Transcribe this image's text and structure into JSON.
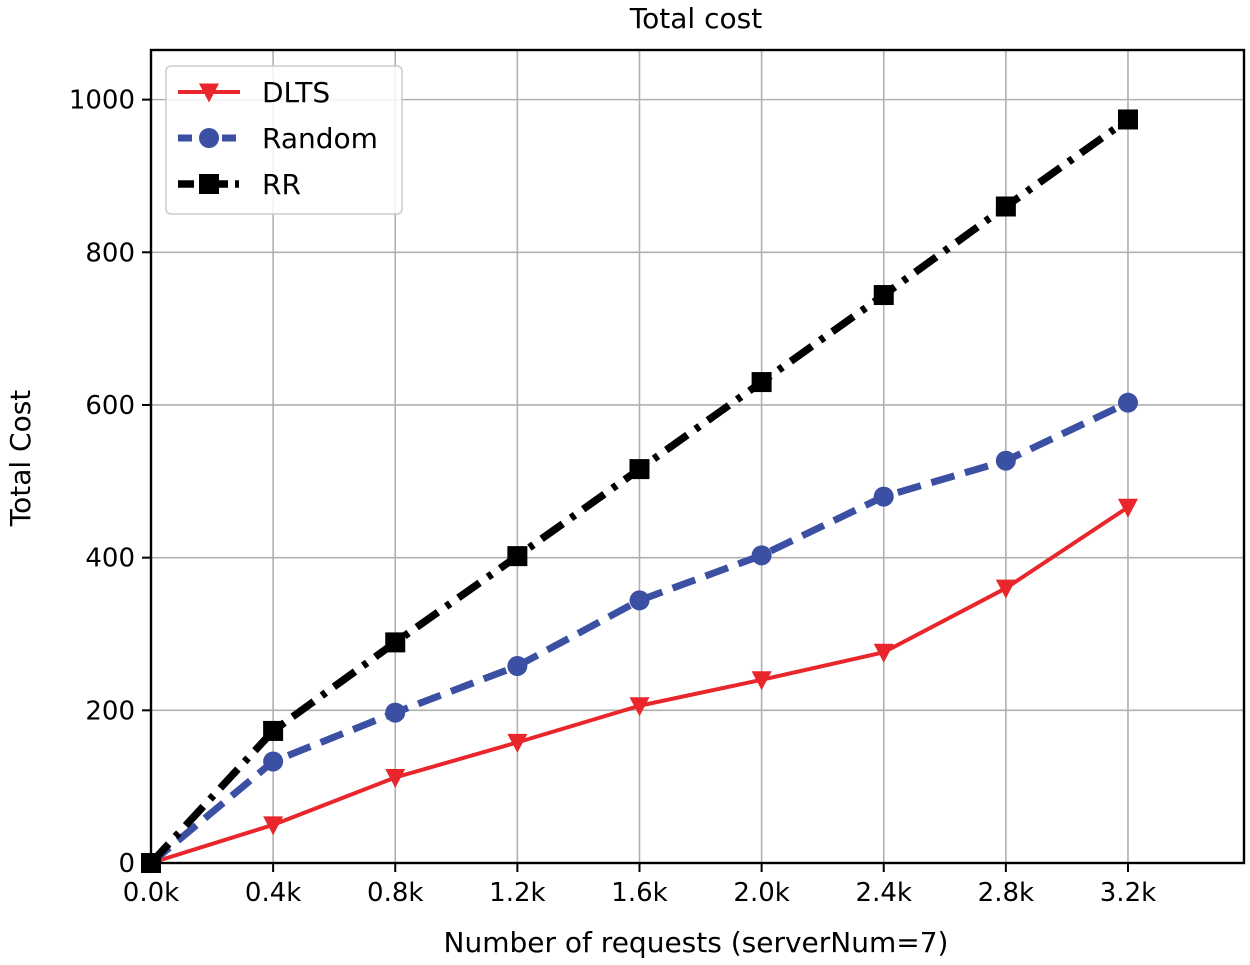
{
  "chart_data": {
    "type": "line",
    "title": "Total cost",
    "xlabel": "Number of requests (serverNum=7)",
    "ylabel": "Total Cost",
    "x": [
      0,
      400,
      800,
      1200,
      1600,
      2000,
      2400,
      2800,
      3200
    ],
    "x_tick_labels": [
      "0.0k",
      "0.4k",
      "0.8k",
      "1.2k",
      "1.6k",
      "2.0k",
      "2.4k",
      "2.8k",
      "3.2k"
    ],
    "xlim": [
      0,
      3580
    ],
    "yticks": [
      0,
      200,
      400,
      600,
      800,
      1000
    ],
    "ylim": [
      0,
      1065
    ],
    "grid": true,
    "legend_position": "top-left",
    "series": [
      {
        "name": "DLTS",
        "color": "#e8262b",
        "marker": "triangle-down",
        "linestyle": "solid",
        "values": [
          0,
          50,
          112,
          158,
          206,
          240,
          276,
          360,
          466
        ]
      },
      {
        "name": "Random",
        "color": "#3b4fa3",
        "marker": "circle",
        "linestyle": "dashed",
        "values": [
          0,
          133,
          197,
          258,
          344,
          403,
          480,
          527,
          603
        ]
      },
      {
        "name": "RR",
        "color": "#000000",
        "marker": "square",
        "linestyle": "dashdot",
        "values": [
          0,
          173,
          289,
          402,
          516,
          630,
          744,
          860,
          974
        ]
      }
    ]
  }
}
